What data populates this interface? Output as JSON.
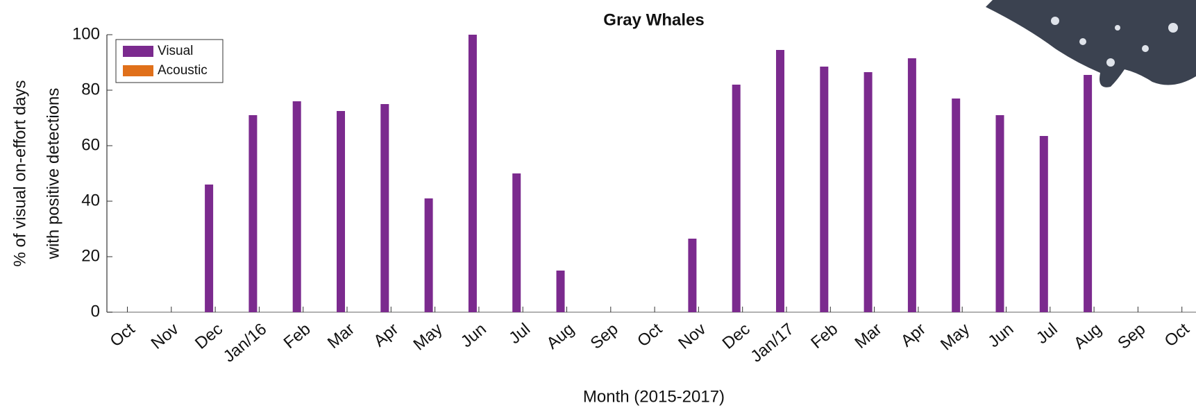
{
  "chart_data": {
    "type": "bar",
    "title": "Gray Whales",
    "x_label": "Month (2015-2017)",
    "y_label": [
      "% of visual on-effort days",
      "with positive detections"
    ],
    "categories": [
      "Oct",
      "Nov",
      "Dec",
      "Jan/16",
      "Feb",
      "Mar",
      "Apr",
      "May",
      "Jun",
      "Jul",
      "Aug",
      "Sep",
      "Oct",
      "Nov",
      "Dec",
      "Jan/17",
      "Feb",
      "Mar",
      "Apr",
      "May",
      "Jun",
      "Jul",
      "Aug",
      "Sep",
      "Oct"
    ],
    "series": [
      {
        "name": "Visual",
        "color": "#7b2a8e",
        "values": [
          0,
          0,
          46,
          71,
          76,
          72.5,
          75,
          41,
          100,
          50,
          15,
          0,
          0,
          26.5,
          82,
          94.5,
          88.5,
          86.5,
          91.5,
          77,
          71,
          63.5,
          85.5,
          0,
          0
        ]
      },
      {
        "name": "Acoustic",
        "color": "#e0701a",
        "values": [
          0,
          0,
          0,
          0,
          0,
          0,
          0,
          0,
          0,
          0,
          0,
          0,
          0,
          0,
          0,
          0,
          0,
          0,
          0,
          0,
          0,
          0,
          0,
          0,
          0
        ]
      }
    ],
    "ylim": [
      0,
      100
    ],
    "yticks": [
      0,
      20,
      40,
      60,
      80,
      100
    ],
    "legend": "upper left"
  }
}
